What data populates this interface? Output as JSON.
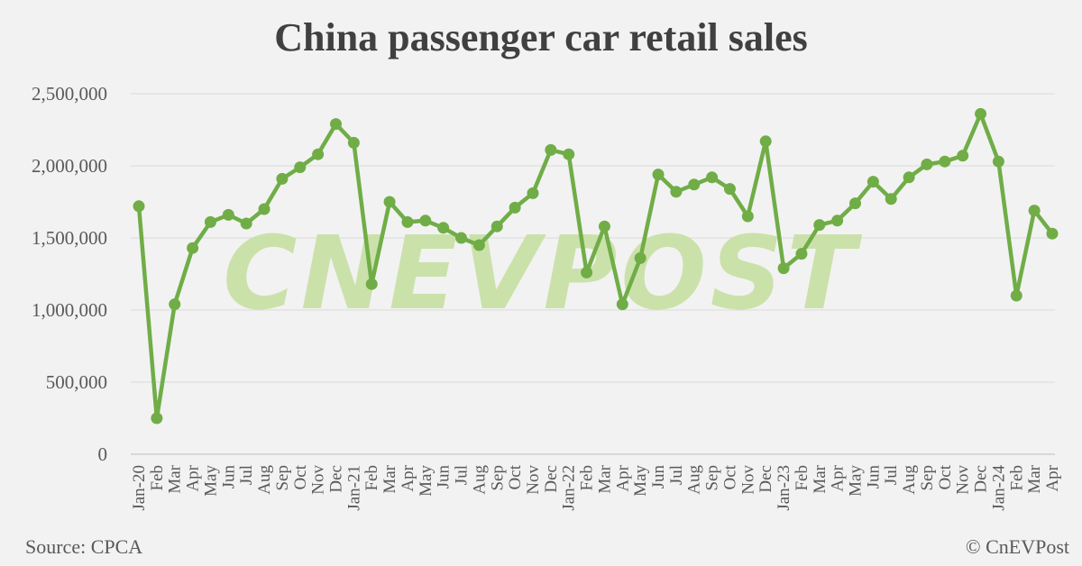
{
  "chart_data": {
    "type": "line",
    "title": "China passenger car retail sales",
    "xlabel": "",
    "ylabel": "",
    "ylim": [
      0,
      2500000
    ],
    "yticks": [
      "0",
      "500,000",
      "1,000,000",
      "1,500,000",
      "2,000,000",
      "2,500,000"
    ],
    "ytick_values": [
      0,
      500000,
      1000000,
      1500000,
      2000000,
      2500000
    ],
    "grid": true,
    "legend": "none",
    "colors": {
      "line": "#70ad47",
      "grid": "#d9d9d9",
      "watermark": "#c5df9e"
    },
    "categories": [
      "Jan-20",
      "Feb",
      "Mar",
      "Apr",
      "May",
      "Jun",
      "Jul",
      "Aug",
      "Sep",
      "Oct",
      "Nov",
      "Dec",
      "Jan-21",
      "Feb",
      "Mar",
      "Apr",
      "May",
      "Jun",
      "Jul",
      "Aug",
      "Sep",
      "Oct",
      "Nov",
      "Dec",
      "Jan-22",
      "Feb",
      "Mar",
      "Apr",
      "May",
      "Jun",
      "Jul",
      "Aug",
      "Sep",
      "Oct",
      "Nov",
      "Dec",
      "Jan-23",
      "Feb",
      "Mar",
      "Apr",
      "May",
      "Jun",
      "Jul",
      "Aug",
      "Sep",
      "Oct",
      "Nov",
      "Dec",
      "Jan-24",
      "Feb",
      "Mar",
      "Apr"
    ],
    "series": [
      {
        "values": [
          1720000,
          250000,
          1040000,
          1430000,
          1610000,
          1660000,
          1600000,
          1700000,
          1910000,
          1990000,
          2080000,
          2290000,
          2160000,
          1180000,
          1750000,
          1610000,
          1620000,
          1570000,
          1500000,
          1450000,
          1580000,
          1710000,
          1810000,
          2110000,
          2080000,
          1260000,
          1580000,
          1040000,
          1360000,
          1940000,
          1820000,
          1870000,
          1920000,
          1840000,
          1650000,
          2170000,
          1290000,
          1390000,
          1590000,
          1620000,
          1740000,
          1890000,
          1770000,
          1920000,
          2010000,
          2030000,
          2070000,
          2360000,
          2030000,
          1100000,
          1690000,
          1530000
        ]
      }
    ]
  },
  "footer": {
    "source": "Source: CPCA",
    "copyright": "© CnEVPost"
  },
  "watermark_text": "CNEVPOST"
}
